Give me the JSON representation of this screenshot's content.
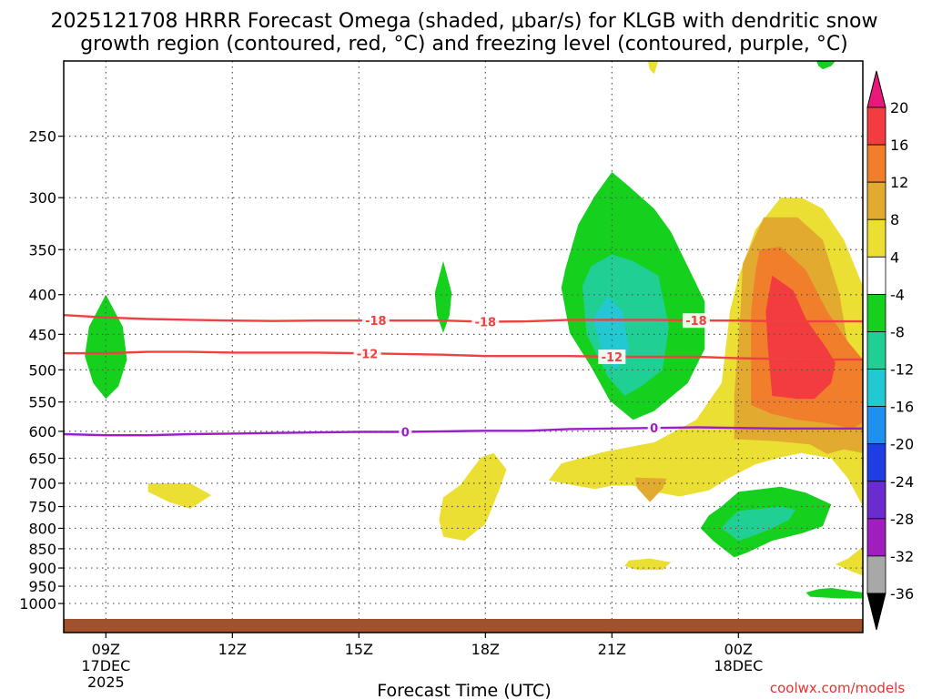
{
  "chart_data": {
    "type": "contour",
    "title_line1": "2025121708 HRRR Forecast Omega (shaded, μbar/s) for KLGB with dendritic snow",
    "title_line2": "growth region (contoured, red, °C) and freezing level (contoured, purple, °C)",
    "xlabel": "Forecast Time (UTC)",
    "credit": "coolwx.com/models",
    "x_range_hours": [
      8.0,
      26.95
    ],
    "pressure_range_hpa": [
      1090,
      200
    ],
    "pressure_ticks": [
      250,
      300,
      350,
      400,
      450,
      500,
      550,
      600,
      650,
      700,
      750,
      800,
      850,
      900,
      950,
      1000
    ],
    "time_ticks": [
      {
        "hour": 9,
        "label": "09Z",
        "date": "17DEC",
        "year": "2025"
      },
      {
        "hour": 12,
        "label": "12Z"
      },
      {
        "hour": 15,
        "label": "15Z"
      },
      {
        "hour": 18,
        "label": "18Z"
      },
      {
        "hour": 21,
        "label": "21Z"
      },
      {
        "hour": 24,
        "label": "00Z",
        "date": "18DEC"
      }
    ],
    "colorbar": {
      "tick_labels": [
        "20",
        "16",
        "12",
        "8",
        "4",
        "-4",
        "-8",
        "-12",
        "-16",
        "-20",
        "-24",
        "-28",
        "-32",
        "-36"
      ],
      "bins": [
        {
          "lo": 16,
          "hi": 20,
          "color": "#f33c3f"
        },
        {
          "lo": 12,
          "hi": 16,
          "color": "#f07e2a"
        },
        {
          "lo": 8,
          "hi": 12,
          "color": "#e2ab30"
        },
        {
          "lo": 4,
          "hi": 8,
          "color": "#ebdf34"
        },
        {
          "lo": -4,
          "hi": 4,
          "color": "#ffffff"
        },
        {
          "lo": -8,
          "hi": -4,
          "color": "#15d11e"
        },
        {
          "lo": -12,
          "hi": -8,
          "color": "#20cf93"
        },
        {
          "lo": -16,
          "hi": -12,
          "color": "#22c8d2"
        },
        {
          "lo": -20,
          "hi": -16,
          "color": "#1f8ff0"
        },
        {
          "lo": -24,
          "hi": -20,
          "color": "#1e3ee3"
        },
        {
          "lo": -28,
          "hi": -24,
          "color": "#6a2cd0"
        },
        {
          "lo": -32,
          "hi": -28,
          "color": "#9e1ec0"
        },
        {
          "lo": -36,
          "hi": -32,
          "color": "#a8a8a8"
        }
      ],
      "top_extension_color": "#e8197a",
      "bottom_extension_color": "#000000"
    },
    "ground_color": "#a0522d",
    "contours": [
      {
        "name": "-18",
        "label": "-18",
        "color": "#f04040",
        "points": [
          [
            8.0,
            425
          ],
          [
            9,
            428
          ],
          [
            10,
            430
          ],
          [
            11,
            431
          ],
          [
            12,
            432
          ],
          [
            13,
            432.5
          ],
          [
            14,
            432
          ],
          [
            15,
            432
          ],
          [
            16,
            432
          ],
          [
            17,
            432
          ],
          [
            18,
            433.5
          ],
          [
            19,
            433
          ],
          [
            20,
            431
          ],
          [
            21,
            431
          ],
          [
            22,
            431
          ],
          [
            23,
            432
          ],
          [
            24,
            432
          ],
          [
            25,
            433
          ],
          [
            26,
            433
          ],
          [
            26.95,
            433
          ]
        ],
        "label_hours": [
          15.4,
          18.0,
          23.0
        ]
      },
      {
        "name": "-12",
        "label": "-12",
        "color": "#f04040",
        "points": [
          [
            8.0,
            476
          ],
          [
            9,
            476
          ],
          [
            10,
            474
          ],
          [
            11,
            474
          ],
          [
            12,
            475
          ],
          [
            13,
            475
          ],
          [
            14,
            475
          ],
          [
            15,
            476
          ],
          [
            16,
            477
          ],
          [
            17,
            478
          ],
          [
            18,
            480
          ],
          [
            19,
            480
          ],
          [
            20,
            480
          ],
          [
            21,
            481
          ],
          [
            22,
            481
          ],
          [
            23,
            481
          ],
          [
            24,
            483
          ],
          [
            25,
            484
          ],
          [
            26,
            485
          ],
          [
            26.95,
            485
          ]
        ],
        "label_hours": [
          15.2,
          21.0
        ]
      },
      {
        "name": "0",
        "label": "0",
        "color": "#9c1ec8",
        "points": [
          [
            8.0,
            605
          ],
          [
            9,
            607
          ],
          [
            10,
            607
          ],
          [
            11,
            605
          ],
          [
            12,
            604
          ],
          [
            13,
            603
          ],
          [
            14,
            602
          ],
          [
            15,
            601
          ],
          [
            16,
            601
          ],
          [
            17,
            600
          ],
          [
            18,
            599
          ],
          [
            19,
            599
          ],
          [
            20,
            596
          ],
          [
            21,
            595
          ],
          [
            22,
            594
          ],
          [
            23,
            593
          ],
          [
            24,
            594
          ],
          [
            25,
            595
          ],
          [
            26,
            595
          ],
          [
            26.95,
            595
          ]
        ],
        "label_hours": [
          16.1,
          22.0
        ]
      }
    ],
    "shaded_regions": [
      {
        "name": "pos-orange-top-clip",
        "bin": 4,
        "points": [
          [
            21.85,
            200
          ],
          [
            22.0,
            195
          ],
          [
            22.1,
            200
          ],
          [
            22.0,
            208
          ],
          [
            21.9,
            205
          ]
        ]
      },
      {
        "name": "neg-green-top-clip",
        "bin": -8,
        "points": [
          [
            25.85,
            200
          ],
          [
            26.3,
            200
          ],
          [
            26.2,
            203
          ],
          [
            26.0,
            205
          ],
          [
            25.9,
            203
          ]
        ]
      },
      {
        "name": "yellow-big",
        "bin": 4,
        "points": [
          [
            25.0,
            300
          ],
          [
            25.5,
            300
          ],
          [
            26,
            310
          ],
          [
            26.5,
            340
          ],
          [
            26.95,
            390
          ],
          [
            26.95,
            750
          ],
          [
            26.6,
            690
          ],
          [
            26.2,
            650
          ],
          [
            25.5,
            640
          ],
          [
            25.0,
            648
          ],
          [
            24.4,
            662
          ],
          [
            23.8,
            688
          ],
          [
            23.3,
            715
          ],
          [
            22.6,
            728
          ],
          [
            22,
            718
          ],
          [
            21.5,
            705
          ],
          [
            21,
            705
          ],
          [
            20.6,
            712
          ],
          [
            20.2,
            706
          ],
          [
            19.5,
            694
          ],
          [
            19.8,
            660
          ],
          [
            20.8,
            638
          ],
          [
            22,
            620
          ],
          [
            23,
            580
          ],
          [
            23.6,
            520
          ],
          [
            23.8,
            420
          ],
          [
            24.0,
            380
          ],
          [
            24.4,
            330
          ]
        ]
      },
      {
        "name": "yellow-bump-22z",
        "bin": 4,
        "points": [
          [
            21.4,
            880
          ],
          [
            21.9,
            875
          ],
          [
            22.4,
            885
          ],
          [
            22.2,
            905
          ],
          [
            21.6,
            905
          ],
          [
            21.3,
            895
          ]
        ]
      },
      {
        "name": "yellow-bottom-right",
        "bin": 4,
        "points": [
          [
            26.95,
            845
          ],
          [
            26.6,
            875
          ],
          [
            26.3,
            890
          ],
          [
            26.7,
            910
          ],
          [
            26.95,
            920
          ]
        ]
      },
      {
        "name": "yellow-10z",
        "bin": 4,
        "points": [
          [
            10.0,
            700
          ],
          [
            11.0,
            700
          ],
          [
            11.5,
            725
          ],
          [
            11.0,
            755
          ],
          [
            10.5,
            740
          ],
          [
            10.0,
            718
          ]
        ]
      },
      {
        "name": "yellow-18z",
        "bin": 4,
        "points": [
          [
            17.9,
            648
          ],
          [
            18.2,
            640
          ],
          [
            18.5,
            672
          ],
          [
            18.3,
            720
          ],
          [
            18.0,
            790
          ],
          [
            17.5,
            830
          ],
          [
            17.0,
            820
          ],
          [
            16.9,
            780
          ],
          [
            17.0,
            730
          ],
          [
            17.4,
            704
          ]
        ]
      },
      {
        "name": "orange-big",
        "bin": 8,
        "points": [
          [
            24.6,
            318
          ],
          [
            25.4,
            318
          ],
          [
            26.0,
            340
          ],
          [
            26.4,
            400
          ],
          [
            26.6,
            470
          ],
          [
            26.95,
            510
          ],
          [
            26.95,
            640
          ],
          [
            26.5,
            633
          ],
          [
            26.1,
            642
          ],
          [
            25.7,
            624
          ],
          [
            24.9,
            618
          ],
          [
            23.9,
            614
          ],
          [
            23.9,
            540
          ],
          [
            24.05,
            420
          ],
          [
            24.1,
            365
          ]
        ]
      },
      {
        "name": "orange-bump-22z",
        "bin": 8,
        "points": [
          [
            21.55,
            688
          ],
          [
            22.3,
            690
          ],
          [
            22.2,
            712
          ],
          [
            21.9,
            740
          ],
          [
            21.6,
            710
          ]
        ]
      },
      {
        "name": "dark-orange",
        "bin": 12,
        "points": [
          [
            24.5,
            350
          ],
          [
            25.0,
            347
          ],
          [
            25.6,
            372
          ],
          [
            26.1,
            420
          ],
          [
            26.6,
            460
          ],
          [
            26.95,
            485
          ],
          [
            26.95,
            585
          ],
          [
            26.7,
            595
          ],
          [
            26.0,
            585
          ],
          [
            25.4,
            580
          ],
          [
            24.8,
            570
          ],
          [
            24.3,
            555
          ],
          [
            24.3,
            420
          ],
          [
            24.4,
            375
          ]
        ]
      },
      {
        "name": "red-core",
        "bin": 16,
        "points": [
          [
            24.8,
            378
          ],
          [
            25.3,
            395
          ],
          [
            25.6,
            430
          ],
          [
            26.1,
            470
          ],
          [
            26.3,
            490
          ],
          [
            26.2,
            520
          ],
          [
            25.8,
            545
          ],
          [
            25.4,
            545
          ],
          [
            24.8,
            540
          ],
          [
            24.7,
            470
          ],
          [
            24.65,
            420
          ]
        ]
      },
      {
        "name": "green-09z",
        "bin": -8,
        "points": [
          [
            9.0,
            400
          ],
          [
            9.4,
            440
          ],
          [
            9.5,
            485
          ],
          [
            9.3,
            525
          ],
          [
            9.0,
            545
          ],
          [
            8.7,
            520
          ],
          [
            8.5,
            480
          ],
          [
            8.6,
            440
          ]
        ]
      },
      {
        "name": "green-17z",
        "bin": -8,
        "points": [
          [
            17.0,
            362
          ],
          [
            17.2,
            398
          ],
          [
            17.15,
            425
          ],
          [
            17.0,
            448
          ],
          [
            16.85,
            425
          ],
          [
            16.8,
            398
          ]
        ]
      },
      {
        "name": "green-21z",
        "bin": -8,
        "points": [
          [
            20.6,
            298
          ],
          [
            21.0,
            278
          ],
          [
            21.4,
            290
          ],
          [
            22.0,
            310
          ],
          [
            22.4,
            332
          ],
          [
            23.2,
            408
          ],
          [
            23.2,
            470
          ],
          [
            22.8,
            520
          ],
          [
            22.0,
            565
          ],
          [
            21.5,
            580
          ],
          [
            20.95,
            548
          ],
          [
            20.5,
            495
          ],
          [
            20.0,
            448
          ],
          [
            19.8,
            392
          ],
          [
            19.9,
            370
          ],
          [
            20.2,
            325
          ]
        ]
      },
      {
        "name": "teal-21z",
        "bin": -12,
        "points": [
          [
            21.0,
            355
          ],
          [
            21.5,
            362
          ],
          [
            22.1,
            378
          ],
          [
            22.35,
            440
          ],
          [
            22.2,
            500
          ],
          [
            21.7,
            525
          ],
          [
            21.3,
            540
          ],
          [
            20.9,
            510
          ],
          [
            20.4,
            450
          ],
          [
            20.3,
            390
          ],
          [
            20.5,
            368
          ]
        ]
      },
      {
        "name": "cyan-21z",
        "bin": -16,
        "points": [
          [
            20.9,
            402
          ],
          [
            21.25,
            420
          ],
          [
            21.4,
            470
          ],
          [
            21.1,
            500
          ],
          [
            20.8,
            480
          ],
          [
            20.55,
            430
          ]
        ]
      },
      {
        "name": "green-22-25z",
        "bin": -8,
        "points": [
          [
            24.0,
            718
          ],
          [
            25.0,
            707
          ],
          [
            25.6,
            720
          ],
          [
            26.2,
            745
          ],
          [
            26.0,
            795
          ],
          [
            25.5,
            812
          ],
          [
            24.8,
            830
          ],
          [
            24.2,
            860
          ],
          [
            23.9,
            872
          ],
          [
            23.4,
            830
          ],
          [
            23.1,
            800
          ],
          [
            23.3,
            770
          ],
          [
            23.6,
            750
          ]
        ]
      },
      {
        "name": "teal-22-25z",
        "bin": -12,
        "points": [
          [
            24.0,
            760
          ],
          [
            25.0,
            750
          ],
          [
            25.35,
            757
          ],
          [
            25.2,
            780
          ],
          [
            24.8,
            800
          ],
          [
            24.3,
            820
          ],
          [
            24.0,
            830
          ],
          [
            23.6,
            800
          ],
          [
            23.75,
            782
          ]
        ]
      },
      {
        "name": "green-bottom-right",
        "bin": -8,
        "points": [
          [
            26.2,
            955
          ],
          [
            26.95,
            968
          ],
          [
            26.95,
            985
          ],
          [
            26.4,
            985
          ],
          [
            25.7,
            980
          ],
          [
            25.6,
            968
          ],
          [
            25.9,
            958
          ]
        ]
      }
    ]
  }
}
